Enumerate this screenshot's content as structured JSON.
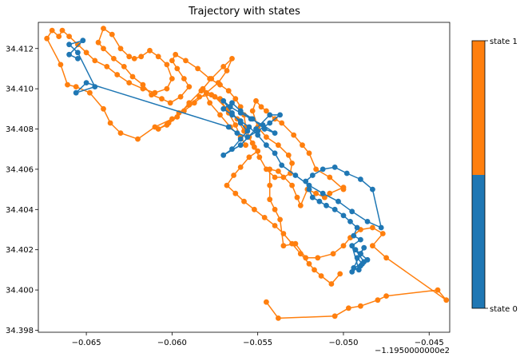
{
  "chart_data": {
    "type": "scatter",
    "title": "Trajectory with states",
    "xlabel": "",
    "ylabel": "",
    "x_offset_label": "−1.1950000000e2",
    "xlim": [
      -0.0678,
      -0.0438
    ],
    "ylim": [
      34.3979,
      34.4133
    ],
    "x_ticks": [
      -0.065,
      -0.06,
      -0.055,
      -0.05,
      -0.045
    ],
    "x_tick_labels": [
      "−0.065",
      "−0.060",
      "−0.055",
      "−0.050",
      "−0.045"
    ],
    "y_ticks": [
      34.398,
      34.4,
      34.402,
      34.404,
      34.406,
      34.408,
      34.41,
      34.412
    ],
    "y_tick_labels": [
      "34.398",
      "34.400",
      "34.402",
      "34.404",
      "34.406",
      "34.408",
      "34.410",
      "34.412"
    ],
    "grid": false,
    "colorbar": {
      "labels": [
        "state 0",
        "state 1"
      ],
      "split_fraction": 0.5
    },
    "colors": {
      "state0": "#1f77b4",
      "state1": "#ff7f0e"
    },
    "series": [
      {
        "state": 1,
        "x": [
          -0.0545,
          -0.0538,
          -0.0505,
          -0.0497,
          -0.049,
          -0.048,
          -0.0475,
          -0.0445,
          -0.044,
          -0.0475,
          -0.0483,
          -0.0477,
          -0.0483,
          -0.049,
          -0.0496,
          -0.05,
          -0.0506,
          -0.0515,
          -0.0522,
          -0.0528,
          -0.0535,
          -0.0537,
          -0.054,
          -0.0543,
          -0.0543,
          -0.0543,
          -0.0538,
          -0.053,
          -0.0527,
          -0.0525,
          -0.0521,
          -0.0516,
          -0.0511,
          -0.0508,
          -0.05,
          -0.05,
          -0.0508,
          -0.0516,
          -0.052,
          -0.0524,
          -0.0529,
          -0.0536,
          -0.054,
          -0.0545,
          -0.0548,
          -0.0551,
          -0.0553,
          -0.055,
          -0.0545,
          -0.0538,
          -0.0532,
          -0.053,
          -0.0531,
          -0.0535,
          -0.054,
          -0.0545,
          -0.0549,
          -0.0552,
          -0.0555,
          -0.0557,
          -0.0558,
          -0.056,
          -0.0563,
          -0.0567,
          -0.0572,
          -0.0578,
          -0.0585,
          -0.0592,
          -0.0598,
          -0.06,
          -0.0597,
          -0.0593,
          -0.059,
          -0.0595,
          -0.0601,
          -0.0606,
          -0.0612,
          -0.0617,
          -0.0623,
          -0.0628,
          -0.0634,
          -0.064,
          -0.0643,
          -0.064,
          -0.0635,
          -0.063,
          -0.0625,
          -0.0622,
          -0.0618,
          -0.0613,
          -0.0608,
          -0.0603,
          -0.06,
          -0.0603,
          -0.061,
          -0.0617,
          -0.0625,
          -0.0632,
          -0.0638,
          -0.0645,
          -0.065,
          -0.0655,
          -0.066,
          -0.0664,
          -0.0666,
          -0.067,
          -0.0673,
          -0.0665,
          -0.0661,
          -0.0656,
          -0.0648,
          -0.064,
          -0.0636,
          -0.063,
          -0.062,
          -0.061,
          -0.06,
          -0.0593,
          -0.0587,
          -0.058,
          -0.0573,
          -0.0568,
          -0.0565,
          -0.057,
          -0.0577,
          -0.0583,
          -0.059,
          -0.0597,
          -0.0603,
          -0.0608,
          -0.0602,
          -0.0596,
          -0.059,
          -0.0584,
          -0.0577,
          -0.0572,
          -0.0567,
          -0.0563,
          -0.056,
          -0.0557,
          -0.056,
          -0.0566,
          -0.0572,
          -0.0578,
          -0.0582,
          -0.0575,
          -0.0568,
          -0.0562,
          -0.0558,
          -0.0553,
          -0.055,
          -0.0555,
          -0.056,
          -0.0564,
          -0.0568,
          -0.0563,
          -0.0558,
          -0.0552,
          -0.0546,
          -0.054,
          -0.0535,
          -0.053,
          -0.0525,
          -0.052,
          -0.0517,
          -0.0513,
          -0.0507,
          -0.0502
        ],
        "y": [
          34.3994,
          34.3986,
          34.3987,
          34.3991,
          34.3992,
          34.3995,
          34.3997,
          34.4,
          34.3995,
          34.4016,
          34.4022,
          34.4028,
          34.4031,
          34.403,
          34.4026,
          34.4022,
          34.4018,
          34.4016,
          34.4016,
          34.4023,
          34.4022,
          34.4035,
          34.404,
          34.4045,
          34.4052,
          34.406,
          34.4059,
          34.4052,
          34.4046,
          34.4042,
          34.405,
          34.4048,
          34.4046,
          34.4048,
          34.4051,
          34.405,
          34.4056,
          34.406,
          34.4068,
          34.4072,
          34.4077,
          34.4083,
          34.4085,
          34.4089,
          34.4091,
          34.4094,
          34.4089,
          34.4081,
          34.4076,
          34.4072,
          34.4067,
          34.4063,
          34.4058,
          34.4056,
          34.4056,
          34.406,
          34.4066,
          34.4071,
          34.4076,
          34.4081,
          34.4087,
          34.4091,
          34.4095,
          34.4099,
          34.4102,
          34.4105,
          34.411,
          34.4114,
          34.4117,
          34.4114,
          34.411,
          34.4105,
          34.4101,
          34.4096,
          34.4093,
          34.4095,
          34.4097,
          34.4102,
          34.4106,
          34.4111,
          34.4115,
          34.412,
          34.4123,
          34.413,
          34.4127,
          34.412,
          34.4116,
          34.4115,
          34.4116,
          34.4119,
          34.4116,
          34.4112,
          34.4105,
          34.41,
          34.4098,
          34.41,
          34.4103,
          34.4107,
          34.4111,
          34.4114,
          34.4118,
          34.4122,
          34.4126,
          34.4129,
          34.4126,
          34.4129,
          34.4125,
          34.4112,
          34.4102,
          34.4101,
          34.4098,
          34.409,
          34.4083,
          34.4078,
          34.4075,
          34.4081,
          34.4085,
          34.4089,
          34.4093,
          34.4098,
          34.4103,
          34.4109,
          34.4115,
          34.4111,
          34.4105,
          34.4099,
          34.4093,
          34.4086,
          34.4082,
          34.408,
          34.4083,
          34.4088,
          34.4092,
          34.4096,
          34.4097,
          34.4095,
          34.4088,
          34.4082,
          34.4076,
          34.4072,
          34.4076,
          34.4081,
          34.4087,
          34.4093,
          34.41,
          34.4096,
          34.409,
          34.4085,
          34.4079,
          34.4073,
          34.4069,
          34.4066,
          34.4061,
          34.4057,
          34.4052,
          34.4048,
          34.4044,
          34.404,
          34.4036,
          34.4032,
          34.4028,
          34.4023,
          34.4018,
          34.4013,
          34.401,
          34.4007,
          34.4003,
          34.4008
        ]
      },
      {
        "state": 0,
        "x": [
          -0.0495,
          -0.049,
          -0.0486,
          -0.049,
          -0.0488,
          -0.0492,
          -0.0489,
          -0.0494,
          -0.049,
          -0.0493,
          -0.0488,
          -0.0491,
          -0.0495,
          -0.049,
          -0.0494,
          -0.0492,
          -0.0496,
          -0.05,
          -0.0505,
          -0.051,
          -0.0514,
          -0.0518,
          -0.052,
          -0.0522,
          -0.0518,
          -0.0512,
          -0.0505,
          -0.0498,
          -0.049,
          -0.0483,
          -0.0478,
          -0.0486,
          -0.0495,
          -0.0503,
          -0.0512,
          -0.052,
          -0.0528,
          -0.0536,
          -0.054,
          -0.0545,
          -0.055,
          -0.0555,
          -0.056,
          -0.0565,
          -0.057,
          -0.0565,
          -0.056,
          -0.0553,
          -0.0546,
          -0.054,
          -0.0547,
          -0.0554,
          -0.056,
          -0.0566,
          -0.057,
          -0.0565,
          -0.056,
          -0.0556,
          -0.056,
          -0.0565,
          -0.057,
          -0.056,
          -0.0551,
          -0.0543,
          -0.0537,
          -0.0543,
          -0.055,
          -0.0556,
          -0.0562,
          -0.0567,
          -0.065,
          -0.0656,
          -0.0645,
          -0.0655,
          -0.066,
          -0.0652,
          -0.066,
          -0.0655
        ],
        "y": [
          34.4009,
          34.4012,
          34.4015,
          34.4018,
          34.4021,
          34.4016,
          34.4013,
          34.4011,
          34.4018,
          34.402,
          34.4014,
          34.401,
          34.4022,
          34.4025,
          34.4027,
          34.4031,
          34.4034,
          34.4037,
          34.404,
          34.4042,
          34.4044,
          34.4046,
          34.405,
          34.4054,
          34.4057,
          34.406,
          34.4061,
          34.4058,
          34.4055,
          34.405,
          34.4031,
          34.4034,
          34.4039,
          34.4044,
          34.4048,
          34.4052,
          34.4057,
          34.4062,
          34.4068,
          34.4072,
          34.4077,
          34.4081,
          34.4084,
          34.4087,
          34.409,
          34.4093,
          34.4089,
          34.4085,
          34.408,
          34.4078,
          34.4082,
          34.4085,
          34.4088,
          34.4091,
          34.4094,
          34.4088,
          34.4083,
          34.4079,
          34.4075,
          34.407,
          34.4067,
          34.4072,
          34.408,
          34.4087,
          34.4087,
          34.4083,
          34.4079,
          34.4076,
          34.4078,
          34.4081,
          34.4103,
          34.4098,
          34.4101,
          34.4118,
          34.4122,
          34.4124,
          34.4117,
          34.4115
        ]
      }
    ]
  }
}
